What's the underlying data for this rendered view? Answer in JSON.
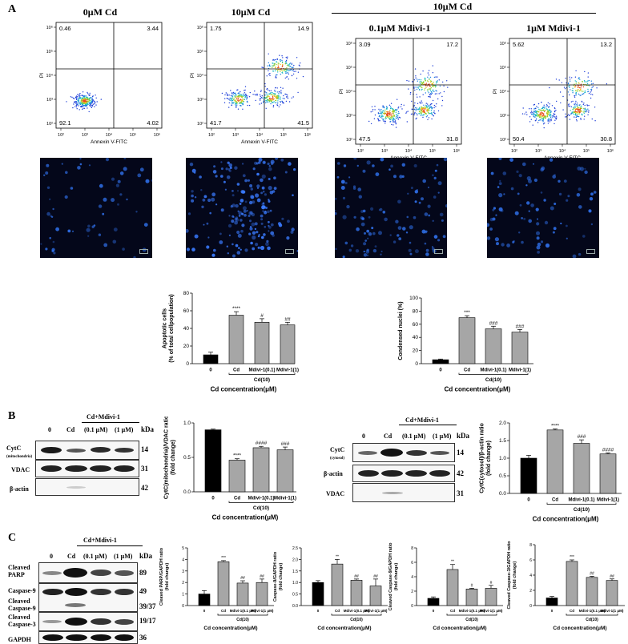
{
  "panel_labels": {
    "a": "A",
    "b": "B",
    "c": "C"
  },
  "flow": {
    "group_header": "10μM Cd",
    "conditions": [
      "0μM Cd",
      "10μM Cd",
      "0.1μM Mdivi-1",
      "1μM Mdivi-1"
    ],
    "y_axis_label": "PI",
    "x_axis_label": "Annexin V-FITC",
    "tick_labels": [
      "10²",
      "10³",
      "10⁴",
      "10⁵",
      "10⁶"
    ],
    "quadrants": [
      {
        "ul": "0.46",
        "ur": "3.44",
        "ll": "92.1",
        "lr": "4.02"
      },
      {
        "ul": "1.75",
        "ur": "14.9",
        "ll": "41.7",
        "lr": "41.5"
      },
      {
        "ul": "3.09",
        "ur": "17.2",
        "ll": "47.5",
        "lr": "31.8"
      },
      {
        "ul": "5.62",
        "ur": "13.2",
        "ll": "50.4",
        "lr": "30.8"
      }
    ]
  },
  "blots": {
    "b_left": {
      "group_label": "Cd+Mdivi-1",
      "lanes": [
        "0",
        "Cd",
        "(0.1 μM)",
        "(1 μM)"
      ],
      "kda": "kDa",
      "rows": [
        {
          "label": "CytC",
          "sub": "(mitochondria)",
          "kda": "14"
        },
        {
          "label": "VDAC",
          "sub": "",
          "kda": "31"
        },
        {
          "label": "β-actin",
          "sub": "",
          "kda": "42"
        }
      ]
    },
    "b_right": {
      "group_label": "Cd+Mdivi-1",
      "lanes": [
        "0",
        "Cd",
        "(0.1 μM)",
        "(1 μM)"
      ],
      "kda": "kDa",
      "rows": [
        {
          "label": "CytC",
          "sub": "(cytosol)",
          "kda": "14"
        },
        {
          "label": "β-actin",
          "sub": "",
          "kda": "42"
        },
        {
          "label": "VDAC",
          "sub": "",
          "kda": "31"
        }
      ]
    },
    "c": {
      "group_label": "Cd+Mdivi-1",
      "lanes": [
        "0",
        "Cd",
        "(0.1 μM)",
        "(1 μM)"
      ],
      "kda": "kDa",
      "rows": [
        {
          "label": "Cleaved PARP",
          "kda": "89"
        },
        {
          "label": "Caspase-9",
          "kda": "49"
        },
        {
          "label": "Cleaved Caspase-9",
          "kda": "39/37"
        },
        {
          "label": "Cleaved Caspase-3",
          "kda": "19/17"
        },
        {
          "label": "GAPDH",
          "kda": "36"
        }
      ]
    }
  },
  "chart_data": [
    {
      "id": "apoptotic",
      "type": "bar",
      "categories": [
        "0",
        "Cd",
        "Mdivi-1(0.1)",
        "Mdivi-1(1)"
      ],
      "values": [
        10,
        55,
        47,
        44
      ],
      "errors": [
        3,
        4,
        4,
        3
      ],
      "significance": [
        "",
        "****",
        "#",
        "##"
      ],
      "ylabel": "Apoptotic cells\n(% of total cellpopulation)",
      "xlabel": "Cd concentration(μM)",
      "bracket_label": "Cd(10)",
      "ylim": [
        0,
        80
      ],
      "yticks": [
        0,
        20,
        40,
        60,
        80
      ],
      "colors": [
        "#000000",
        "#a6a6a6",
        "#a6a6a6",
        "#a6a6a6"
      ]
    },
    {
      "id": "condensed",
      "type": "bar",
      "categories": [
        "0",
        "Cd",
        "Mdivi-1(0.1)",
        "Mdivi-1(1)"
      ],
      "values": [
        6,
        70,
        53,
        48
      ],
      "errors": [
        1,
        3,
        4,
        4
      ],
      "significance": [
        "",
        "***",
        "###",
        "###"
      ],
      "ylabel": "Condensed nuclei (%)",
      "xlabel": "Cd concentration(μM)",
      "bracket_label": "Cd(10)",
      "ylim": [
        0,
        100
      ],
      "yticks": [
        0,
        20,
        40,
        60,
        80,
        100
      ],
      "colors": [
        "#000000",
        "#a6a6a6",
        "#a6a6a6",
        "#a6a6a6"
      ]
    },
    {
      "id": "cytc_mito",
      "type": "bar",
      "categories": [
        "0",
        "Cd",
        "Mdivi-1(0.1)",
        "Mdivi-1(1)"
      ],
      "values": [
        0.9,
        0.46,
        0.64,
        0.61
      ],
      "errors": [
        0.01,
        0.02,
        0.02,
        0.04
      ],
      "significance": [
        "",
        "****",
        "####",
        "###"
      ],
      "ylabel": "CytC(mitochondria)/VDAC ratio\n(fold change)",
      "xlabel": "Cd concentration(μM)",
      "bracket_label": "Cd(10)",
      "ylim": [
        0,
        1.0
      ],
      "yticks": [
        0.0,
        0.5,
        1.0
      ],
      "colors": [
        "#000000",
        "#a6a6a6",
        "#a6a6a6",
        "#a6a6a6"
      ]
    },
    {
      "id": "cytc_cyto",
      "type": "bar",
      "categories": [
        "0",
        "Cd",
        "Mdivi-1(0.1)",
        "Mdivi-1(1)"
      ],
      "values": [
        1.0,
        1.8,
        1.42,
        1.12
      ],
      "errors": [
        0.08,
        0.03,
        0.1,
        0.03
      ],
      "significance": [
        "",
        "****",
        "###",
        "####"
      ],
      "ylabel": "CytC(cytosol)/β-actin ratio\n(fold change)",
      "xlabel": "Cd concentration(μM)",
      "bracket_label": "Cd(10)",
      "ylim": [
        0,
        2.0
      ],
      "yticks": [
        0.0,
        0.5,
        1.0,
        1.5,
        2.0
      ],
      "colors": [
        "#000000",
        "#a6a6a6",
        "#a6a6a6",
        "#a6a6a6"
      ]
    },
    {
      "id": "parp",
      "type": "bar",
      "categories": [
        "0",
        "Cd",
        "Mdivi-1(0.1 μM)",
        "Mdivi-1(1 μM)"
      ],
      "values": [
        1.0,
        3.8,
        1.95,
        2.0
      ],
      "errors": [
        0.3,
        0.1,
        0.2,
        0.3
      ],
      "significance": [
        "",
        "***",
        "##",
        "##"
      ],
      "ylabel": "Cleaved PARP/GAPDH ratio\n(fold change)",
      "xlabel": "Cd concentration(μM)",
      "bracket_label": "Cd(10)",
      "ylim": [
        0,
        5
      ],
      "yticks": [
        0,
        1,
        2,
        3,
        4,
        5
      ],
      "colors": [
        "#000000",
        "#a6a6a6",
        "#a6a6a6",
        "#a6a6a6"
      ]
    },
    {
      "id": "casp9",
      "type": "bar",
      "categories": [
        "0",
        "Cd",
        "Mdivi-1(0.1 μM)",
        "Mdivi-1(1 μM)"
      ],
      "values": [
        1.0,
        1.8,
        1.1,
        0.85
      ],
      "errors": [
        0.08,
        0.2,
        0.05,
        0.3
      ],
      "significance": [
        "",
        "**",
        "##",
        "##"
      ],
      "ylabel": "Caspase-9/GAPDH ratio\n(fold change)",
      "xlabel": "Cd concentration(μM)",
      "bracket_label": "Cd(10)",
      "ylim": [
        0,
        2.5
      ],
      "yticks": [
        0.0,
        0.5,
        1.0,
        1.5,
        2.0,
        2.5
      ],
      "colors": [
        "#000000",
        "#a6a6a6",
        "#a6a6a6",
        "#a6a6a6"
      ]
    },
    {
      "id": "cl_casp9",
      "type": "bar",
      "categories": [
        "0",
        "Cd",
        "Mdivi-1(0.1 μM)",
        "Mdivi-1(1 μM)"
      ],
      "values": [
        1.0,
        5.0,
        2.3,
        2.4
      ],
      "errors": [
        0.2,
        0.7,
        0.1,
        0.4
      ],
      "significance": [
        "",
        "**",
        "#",
        "#"
      ],
      "ylabel": "Cleaved Caspase-9/GAPDH ratio\n(fold change)",
      "xlabel": "Cd concentration(μM)",
      "bracket_label": "Cd(10)",
      "ylim": [
        0,
        8
      ],
      "yticks": [
        0,
        2,
        4,
        6,
        8
      ],
      "colors": [
        "#000000",
        "#a6a6a6",
        "#a6a6a6",
        "#a6a6a6"
      ]
    },
    {
      "id": "cl_casp3",
      "type": "bar",
      "categories": [
        "0",
        "Cd",
        "Mdivi-1(0.1 μM)",
        "Mdivi-1(1 μM)"
      ],
      "values": [
        1.0,
        5.8,
        3.7,
        3.3
      ],
      "errors": [
        0.2,
        0.2,
        0.15,
        0.2
      ],
      "significance": [
        "",
        "***",
        "##",
        "##"
      ],
      "ylabel": "Cleaved Caspase-3/GAPDH ratio\n(fold change)",
      "xlabel": "Cd concentration(μM)",
      "bracket_label": "Cd(10)",
      "ylim": [
        0,
        8
      ],
      "yticks": [
        0,
        2,
        4,
        6,
        8
      ],
      "colors": [
        "#000000",
        "#a6a6a6",
        "#a6a6a6",
        "#a6a6a6"
      ]
    }
  ]
}
